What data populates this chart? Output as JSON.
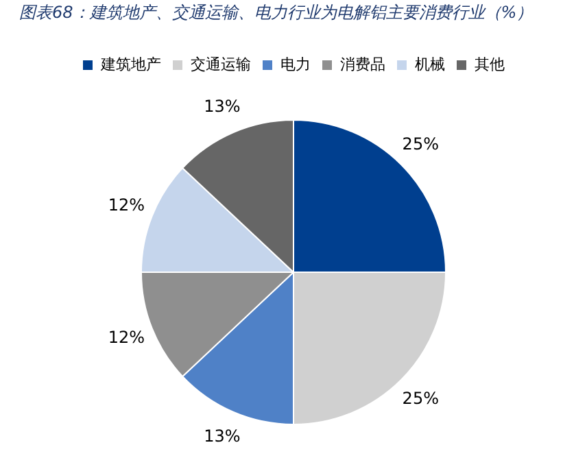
{
  "chart_data": {
    "type": "pie",
    "title": "图表68：建筑地产、交通运输、电力行业为电解铝主要消费行业（%）",
    "categories": [
      "建筑地产",
      "交通运输",
      "电力",
      "消费品",
      "机械",
      "其他"
    ],
    "values": [
      25,
      25,
      13,
      12,
      12,
      13
    ],
    "colors": [
      "#003f8f",
      "#d0d0d0",
      "#4f81c7",
      "#8f8f8f",
      "#c5d5ec",
      "#666666"
    ],
    "value_labels": [
      "25%",
      "25%",
      "13%",
      "12%",
      "12%",
      "13%"
    ],
    "legend": "top"
  }
}
